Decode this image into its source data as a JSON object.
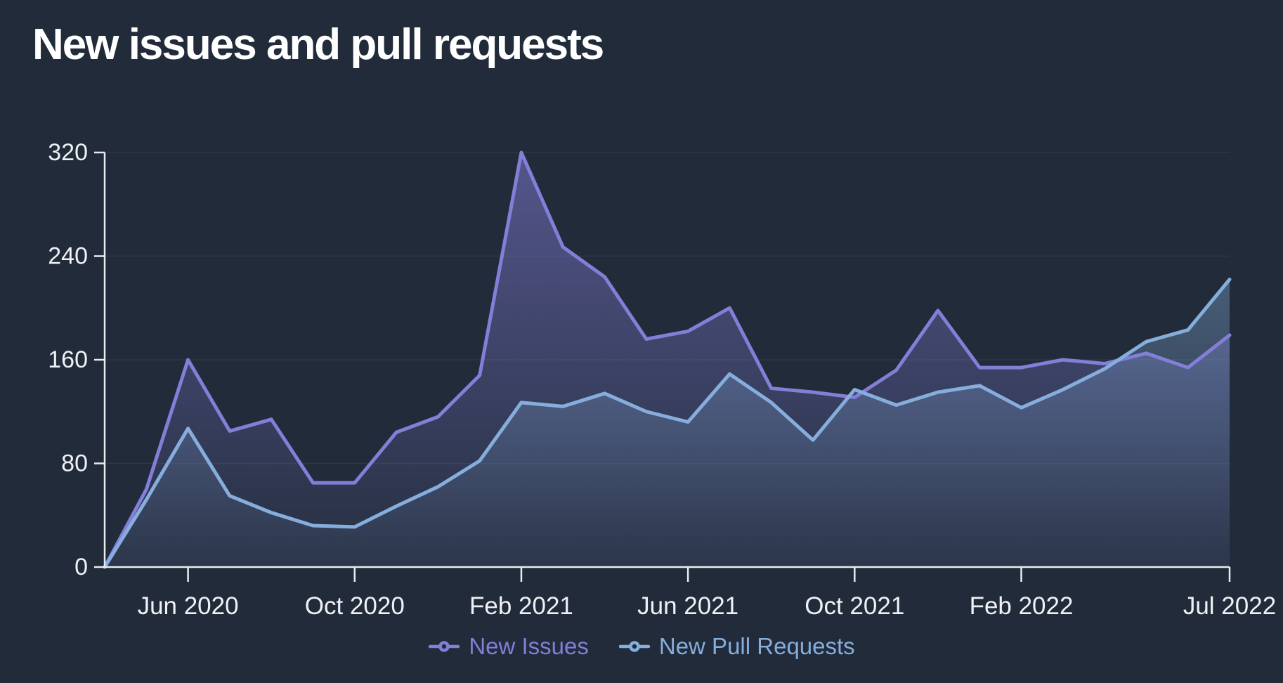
{
  "title": "New issues and pull requests",
  "colors": {
    "background": "#212b39",
    "axis": "#e8ecf1",
    "tick_label": "#eef1f5",
    "grid": "rgba(255,255,255,0.06)"
  },
  "legend": {
    "items": [
      {
        "label": "New Issues"
      },
      {
        "label": "New Pull Requests"
      }
    ]
  },
  "chart_data": {
    "type": "area",
    "title": "New issues and pull requests",
    "xlabel": "",
    "ylabel": "",
    "ylim": [
      0,
      320
    ],
    "y_ticks": [
      0,
      80,
      160,
      240,
      320
    ],
    "grid": "horizontal",
    "legend_position": "bottom-center",
    "x": [
      "Apr 2020",
      "May 2020",
      "Jun 2020",
      "Jul 2020",
      "Aug 2020",
      "Sep 2020",
      "Oct 2020",
      "Nov 2020",
      "Dec 2020",
      "Jan 2021",
      "Feb 2021",
      "Mar 2021",
      "Apr 2021",
      "May 2021",
      "Jun 2021",
      "Jul 2021",
      "Aug 2021",
      "Sep 2021",
      "Oct 2021",
      "Nov 2021",
      "Dec 2021",
      "Jan 2022",
      "Feb 2022",
      "Mar 2022",
      "Apr 2022",
      "May 2022",
      "Jun 2022",
      "Jul 2022"
    ],
    "x_tick_indices": [
      2,
      6,
      10,
      14,
      18,
      22,
      27
    ],
    "x_tick_labels": [
      "Jun 2020",
      "Oct 2020",
      "Feb 2021",
      "Jun 2021",
      "Oct 2021",
      "Feb 2022",
      "Jul 2022"
    ],
    "series": [
      {
        "name": "New Issues",
        "color": "#837ed8",
        "values": [
          0,
          60,
          160,
          105,
          114,
          65,
          65,
          104,
          116,
          148,
          320,
          247,
          224,
          176,
          182,
          200,
          138,
          135,
          131,
          152,
          198,
          154,
          154,
          160,
          157,
          165,
          154,
          179
        ]
      },
      {
        "name": "New Pull Requests",
        "color": "#86aedd",
        "values": [
          0,
          52,
          107,
          55,
          42,
          32,
          31,
          47,
          62,
          82,
          127,
          124,
          134,
          120,
          112,
          149,
          127,
          98,
          137,
          125,
          135,
          140,
          123,
          137,
          153,
          174,
          183,
          222
        ]
      }
    ]
  }
}
